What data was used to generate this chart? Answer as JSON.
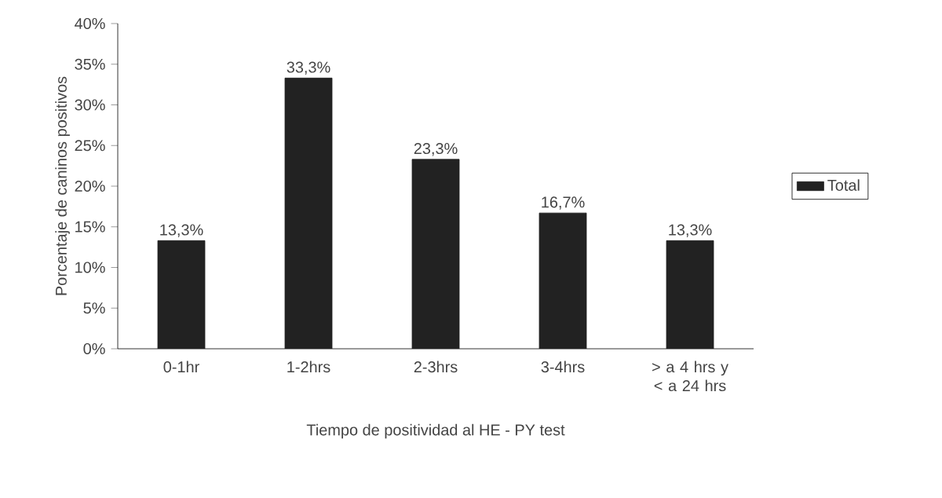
{
  "chart_data": {
    "type": "bar",
    "xlabel": "Tiempo de positividad al HE - PY test",
    "ylabel": "Porcentaje de caninos positivos",
    "categories": [
      "0-1hr",
      "1-2hrs",
      "2-3hrs",
      "3-4hrs",
      "> a 4 hrs y < a 24 hrs"
    ],
    "series": [
      {
        "name": "Total",
        "color": "#222222",
        "values": [
          13.3,
          33.3,
          23.3,
          16.7,
          13.3
        ],
        "value_labels": [
          "13,3%",
          "33,3%",
          "23,3%",
          "16,7%",
          "13,3%"
        ]
      }
    ],
    "ylim": [
      0,
      40
    ],
    "yticks": [
      {
        "value": 0,
        "label": "0%"
      },
      {
        "value": 5,
        "label": "5%"
      },
      {
        "value": 10,
        "label": "10%"
      },
      {
        "value": 15,
        "label": "15%"
      },
      {
        "value": 20,
        "label": "20%"
      },
      {
        "value": 25,
        "label": "25%"
      },
      {
        "value": 30,
        "label": "30%"
      },
      {
        "value": 35,
        "label": "35%"
      },
      {
        "value": 40,
        "label": "40%"
      }
    ],
    "legend": "right",
    "grid": false
  }
}
